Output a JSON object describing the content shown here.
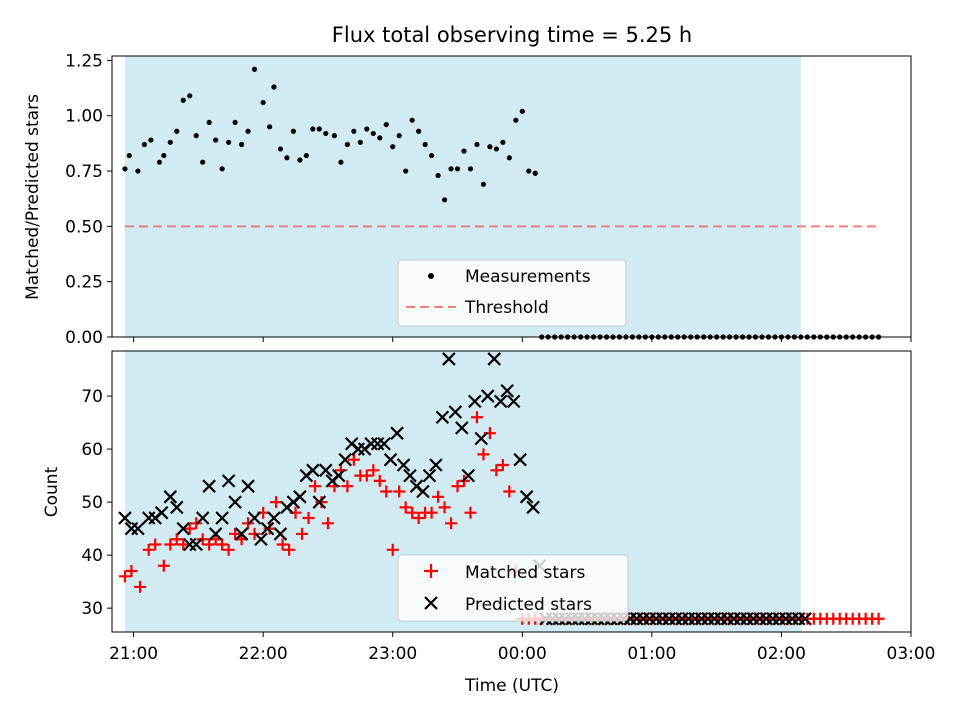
{
  "chart_data": [
    {
      "type": "scatter",
      "title": "Flux total observing time = 5.25 h",
      "xlabel": "",
      "ylabel": "Matched/Predicted stars",
      "xlim": [
        "20:50",
        "03:00"
      ],
      "ylim": [
        0,
        1.27
      ],
      "yticks": [
        "0.00",
        "0.25",
        "0.50",
        "0.75",
        "1.00",
        "1.25"
      ],
      "xticks": [
        "21:00",
        "22:00",
        "23:00",
        "00:00",
        "01:00",
        "02:00",
        "03:00"
      ],
      "show_xticklabels": false,
      "grid": false,
      "legend": "lower-center",
      "shaded_range": {
        "start": "20:56",
        "end": "02:09",
        "color": "#add8e6"
      },
      "series": [
        {
          "name": "Measurements",
          "marker": "dot",
          "color": "#000000",
          "x": [
            "20:56",
            "20:58",
            "21:02",
            "21:05",
            "21:08",
            "21:12",
            "21:14",
            "21:17",
            "21:20",
            "21:23",
            "21:26",
            "21:29",
            "21:32",
            "21:35",
            "21:38",
            "21:41",
            "21:44",
            "21:47",
            "21:50",
            "21:53",
            "21:56",
            "22:00",
            "22:03",
            "22:05",
            "22:08",
            "22:11",
            "22:14",
            "22:17",
            "22:20",
            "22:23",
            "22:26",
            "22:29",
            "22:33",
            "22:36",
            "22:39",
            "22:42",
            "22:45",
            "22:48",
            "22:51",
            "22:54",
            "22:57",
            "23:00",
            "23:03",
            "23:06",
            "23:09",
            "23:12",
            "23:15",
            "23:18",
            "23:21",
            "23:24",
            "23:27",
            "23:30",
            "23:33",
            "23:36",
            "23:39",
            "23:42",
            "23:45",
            "23:48",
            "23:51",
            "23:54",
            "23:57",
            "00:00",
            "00:03",
            "00:06",
            "00:09",
            "00:12",
            "00:15",
            "00:18",
            "00:21",
            "00:24",
            "00:27",
            "00:30",
            "00:33",
            "00:36",
            "00:39",
            "00:42",
            "00:45",
            "00:48",
            "00:51",
            "00:54",
            "00:57",
            "01:00",
            "01:03",
            "01:06",
            "01:09",
            "01:12",
            "01:15",
            "01:18",
            "01:21",
            "01:24",
            "01:27",
            "01:30",
            "01:33",
            "01:36",
            "01:39",
            "01:42",
            "01:45",
            "01:48",
            "01:51",
            "01:54",
            "01:57",
            "02:00",
            "02:03",
            "02:06",
            "02:09",
            "02:12",
            "02:15",
            "02:18",
            "02:21",
            "02:24",
            "02:27",
            "02:30",
            "02:33",
            "02:36",
            "02:39",
            "02:42",
            "02:45"
          ],
          "values": [
            0.76,
            0.82,
            0.75,
            0.87,
            0.89,
            0.79,
            0.82,
            0.88,
            0.93,
            1.07,
            1.09,
            0.91,
            0.79,
            0.97,
            0.89,
            0.76,
            0.88,
            0.97,
            0.87,
            0.93,
            1.21,
            1.06,
            0.95,
            1.13,
            0.85,
            0.81,
            0.93,
            0.8,
            0.82,
            0.94,
            0.94,
            0.92,
            0.91,
            0.79,
            0.87,
            0.93,
            0.88,
            0.94,
            0.92,
            0.9,
            0.96,
            0.86,
            0.91,
            0.75,
            0.98,
            0.93,
            0.87,
            0.82,
            0.73,
            0.62,
            0.76,
            0.76,
            0.84,
            0.76,
            0.87,
            0.69,
            0.86,
            0.85,
            0.88,
            0.81,
            0.98,
            1.02,
            0.75,
            0.74,
            0.0,
            0.0,
            0.0,
            0.0,
            0.0,
            0.0,
            0.0,
            0.0,
            0.0,
            0.0,
            0.0,
            0.0,
            0.0,
            0.0,
            0.0,
            0.0,
            0.0,
            0.0,
            0.0,
            0.0,
            0.0,
            0.0,
            0.0,
            0.0,
            0.0,
            0.0,
            0.0,
            0.0,
            0.0,
            0.0,
            0.0,
            0.0,
            0.0,
            0.0,
            0.0,
            0.0,
            0.0,
            0.0,
            0.0,
            0.0,
            0.0,
            0.0,
            0.0,
            0.0,
            0.0,
            0.0,
            0.0,
            0.0,
            0.0,
            0.0,
            0.0,
            0.0,
            0.0
          ]
        },
        {
          "name": "Threshold",
          "marker": "dashed-line",
          "color": "#f08080",
          "x": [
            "20:56",
            "02:45"
          ],
          "values": [
            0.5,
            0.5
          ]
        }
      ]
    },
    {
      "type": "scatter",
      "title": "",
      "xlabel": "Time (UTC)",
      "ylabel": "Count",
      "xlim": [
        "20:50",
        "03:00"
      ],
      "ylim": [
        25.5,
        78.5
      ],
      "yticks": [
        "30",
        "40",
        "50",
        "60",
        "70"
      ],
      "xticks": [
        "21:00",
        "22:00",
        "23:00",
        "00:00",
        "01:00",
        "02:00",
        "03:00"
      ],
      "grid": false,
      "legend": "lower-center",
      "shaded_range": {
        "start": "20:56",
        "end": "02:09",
        "color": "#add8e6"
      },
      "series": [
        {
          "name": "Matched stars",
          "marker": "plus",
          "color": "#ff0000",
          "x": [
            "20:56",
            "20:59",
            "21:03",
            "21:07",
            "21:10",
            "21:14",
            "21:17",
            "21:20",
            "21:23",
            "21:26",
            "21:29",
            "21:32",
            "21:35",
            "21:38",
            "21:41",
            "21:44",
            "21:47",
            "21:50",
            "21:53",
            "21:56",
            "22:00",
            "22:03",
            "22:06",
            "22:09",
            "22:12",
            "22:15",
            "22:18",
            "22:21",
            "22:24",
            "22:27",
            "22:30",
            "22:33",
            "22:36",
            "22:39",
            "22:42",
            "22:45",
            "22:48",
            "22:51",
            "22:54",
            "22:57",
            "23:00",
            "23:03",
            "23:06",
            "23:09",
            "23:12",
            "23:15",
            "23:18",
            "23:21",
            "23:24",
            "23:27",
            "23:30",
            "23:33",
            "23:36",
            "23:39",
            "23:42",
            "23:45",
            "23:48",
            "23:51",
            "23:54",
            "23:57",
            "00:00",
            "00:03",
            "00:06",
            "00:09",
            "00:12",
            "00:15",
            "00:18",
            "00:21",
            "00:24",
            "00:27",
            "00:30",
            "00:33",
            "00:36",
            "00:39",
            "00:42",
            "00:45",
            "00:48",
            "00:51",
            "00:54",
            "00:57",
            "01:00",
            "01:03",
            "01:06",
            "01:09",
            "01:12",
            "01:15",
            "01:18",
            "01:21",
            "01:24",
            "01:27",
            "01:30",
            "01:33",
            "01:36",
            "01:39",
            "01:42",
            "01:45",
            "01:48",
            "01:51",
            "01:54",
            "01:57",
            "02:00",
            "02:03",
            "02:06",
            "02:09",
            "02:12",
            "02:15",
            "02:18",
            "02:21",
            "02:24",
            "02:27",
            "02:30",
            "02:33",
            "02:36",
            "02:39",
            "02:42",
            "02:45"
          ],
          "values": [
            36,
            37,
            34,
            41,
            42,
            38,
            42,
            43,
            42,
            45,
            46,
            43,
            42,
            43,
            42,
            41,
            44,
            43,
            46,
            44,
            48,
            45,
            50,
            42,
            41,
            48,
            44,
            47,
            53,
            50,
            46,
            53,
            56,
            53,
            58,
            55,
            55,
            56,
            54,
            52,
            41,
            52,
            49,
            48,
            47,
            48,
            48,
            51,
            49,
            46,
            53,
            54,
            48,
            66,
            59,
            63,
            56,
            57,
            52,
            37,
            28,
            28,
            28,
            28,
            28,
            28,
            28,
            28,
            28,
            28,
            28,
            28,
            28,
            28,
            28,
            28,
            28,
            28,
            28,
            28,
            28,
            28,
            28,
            28,
            28,
            28,
            28,
            28,
            28,
            28,
            28,
            28,
            28,
            28,
            28,
            28,
            28,
            28,
            28,
            28,
            28,
            28,
            28,
            28,
            28,
            28,
            28,
            28,
            28,
            28,
            28,
            28,
            28,
            28,
            28,
            28
          ]
        },
        {
          "name": "Predicted stars",
          "marker": "x",
          "color": "#000000",
          "x": [
            "20:56",
            "20:59",
            "21:02",
            "21:07",
            "21:10",
            "21:13",
            "21:17",
            "21:20",
            "21:23",
            "21:26",
            "21:29",
            "21:32",
            "21:35",
            "21:38",
            "21:41",
            "21:44",
            "21:47",
            "21:50",
            "21:53",
            "21:56",
            "21:59",
            "22:02",
            "22:05",
            "22:08",
            "22:11",
            "22:14",
            "22:17",
            "22:20",
            "22:23",
            "22:26",
            "22:29",
            "22:32",
            "22:35",
            "22:38",
            "22:41",
            "22:44",
            "22:47",
            "22:50",
            "22:53",
            "22:56",
            "22:59",
            "23:02",
            "23:05",
            "23:08",
            "23:11",
            "23:14",
            "23:17",
            "23:20",
            "23:23",
            "23:26",
            "23:29",
            "23:32",
            "23:35",
            "23:38",
            "23:41",
            "23:44",
            "23:47",
            "23:50",
            "23:53",
            "23:56",
            "23:59",
            "00:02",
            "00:05",
            "00:08",
            "00:11",
            "00:14",
            "00:17",
            "00:20",
            "00:23",
            "00:26",
            "00:29",
            "00:32",
            "00:35",
            "00:38",
            "00:41",
            "00:44",
            "00:47",
            "00:50",
            "00:53",
            "00:56",
            "00:59",
            "01:02",
            "01:05",
            "01:08",
            "01:11",
            "01:14",
            "01:17",
            "01:20",
            "01:23",
            "01:26",
            "01:29",
            "01:32",
            "01:35",
            "01:38",
            "01:41",
            "01:44",
            "01:47",
            "01:50",
            "01:53",
            "01:56",
            "01:59",
            "02:02",
            "02:05",
            "02:08",
            "02:11"
          ],
          "values": [
            47,
            45,
            45,
            47,
            47,
            48,
            51,
            49,
            45,
            42,
            42,
            47,
            53,
            44,
            47,
            54,
            50,
            44,
            53,
            47,
            43,
            45,
            47,
            44,
            49,
            50,
            51,
            55,
            56,
            50,
            56,
            54,
            55,
            58,
            61,
            60,
            60,
            61,
            61,
            61,
            58,
            63,
            57,
            55,
            53,
            52,
            55,
            57,
            66,
            77,
            67,
            64,
            55,
            69,
            62,
            70,
            77,
            69,
            71,
            69,
            58,
            51,
            49,
            38,
            28,
            28,
            28,
            28,
            28,
            28,
            28,
            28,
            28,
            28,
            28,
            28,
            28,
            28,
            28,
            28,
            28,
            28,
            28,
            28,
            28,
            28,
            28,
            28,
            28,
            28,
            28,
            28,
            28,
            28,
            28,
            28,
            28,
            28,
            28,
            28,
            28,
            28,
            28,
            28,
            28
          ]
        }
      ]
    }
  ]
}
